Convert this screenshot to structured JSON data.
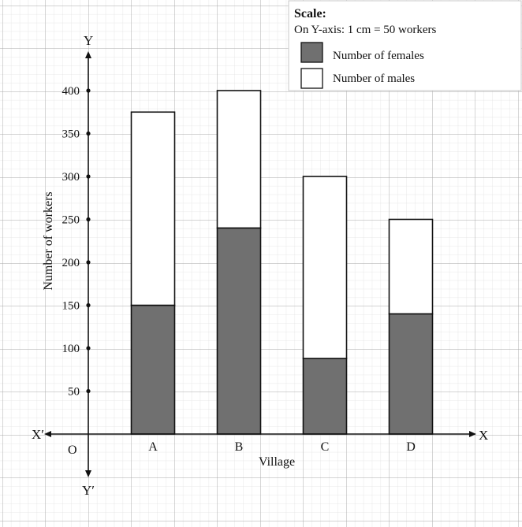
{
  "chart_data": {
    "type": "bar",
    "stacked": true,
    "categories": [
      "A",
      "B",
      "C",
      "D"
    ],
    "series": [
      {
        "name": "Number of females",
        "values": [
          150,
          240,
          88,
          140
        ],
        "color": "#707070"
      },
      {
        "name": "Number of males",
        "values": [
          225,
          160,
          212,
          110
        ],
        "color": "#ffffff"
      }
    ],
    "yticks": [
      50,
      100,
      150,
      200,
      250,
      300,
      350,
      400
    ],
    "ylim": [
      0,
      450
    ],
    "xlabel": "Village",
    "ylabel": "Number of workers",
    "grid": true,
    "legend_position": "top-right",
    "legend": {
      "scale_title": "Scale:",
      "scale_text": "On Y-axis: 1 cm = 50 workers"
    },
    "axis_labels": {
      "y": "Y",
      "y_neg": "Y′",
      "x": "X",
      "x_neg": "X′",
      "origin": "O"
    }
  }
}
